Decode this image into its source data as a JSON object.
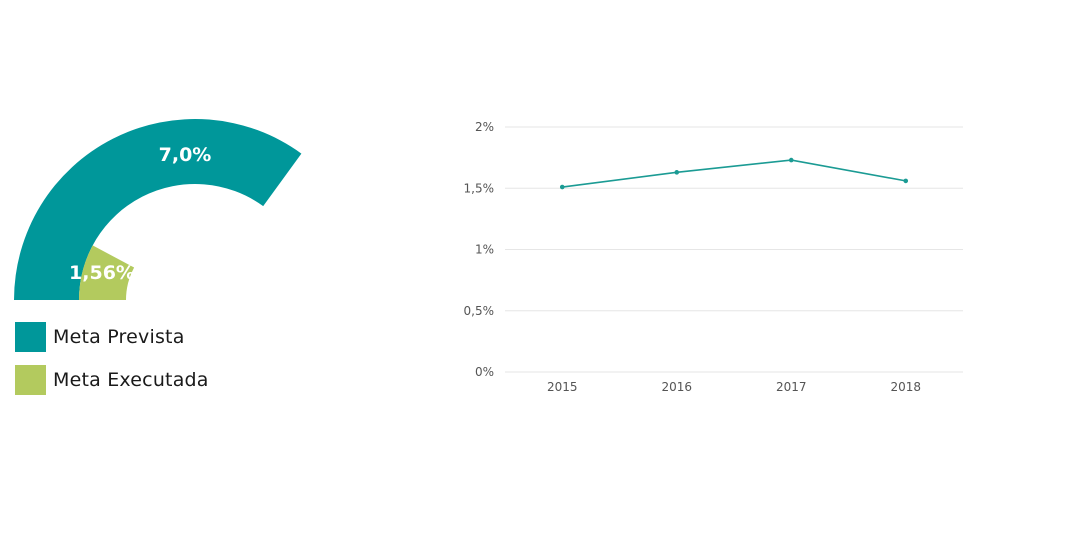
{
  "gauge": {
    "max": 10,
    "segments": [
      {
        "name": "Meta Prevista",
        "value": 7.0,
        "label": "7,0%",
        "color": "#00979A"
      },
      {
        "name": "Meta Executada",
        "value": 1.56,
        "label": "1,56%",
        "color": "#B3CA5E"
      }
    ]
  },
  "legend": [
    {
      "label": "Meta Prevista",
      "color": "#00979A"
    },
    {
      "label": "Meta Executada",
      "color": "#B3CA5E"
    }
  ],
  "chart_data": {
    "type": "line",
    "categories": [
      "2015",
      "2016",
      "2017",
      "2018"
    ],
    "series": [
      {
        "values": [
          1.51,
          1.63,
          1.73,
          1.56
        ],
        "color": "#1B9B94"
      }
    ],
    "ylim": [
      0,
      2
    ],
    "yticks": [
      0,
      0.5,
      1,
      1.5,
      2
    ],
    "ytick_labels": [
      "0%",
      "0,5%",
      "1%",
      "1,5%",
      "2%"
    ],
    "grid": true,
    "title": "",
    "xlabel": "",
    "ylabel": ""
  }
}
